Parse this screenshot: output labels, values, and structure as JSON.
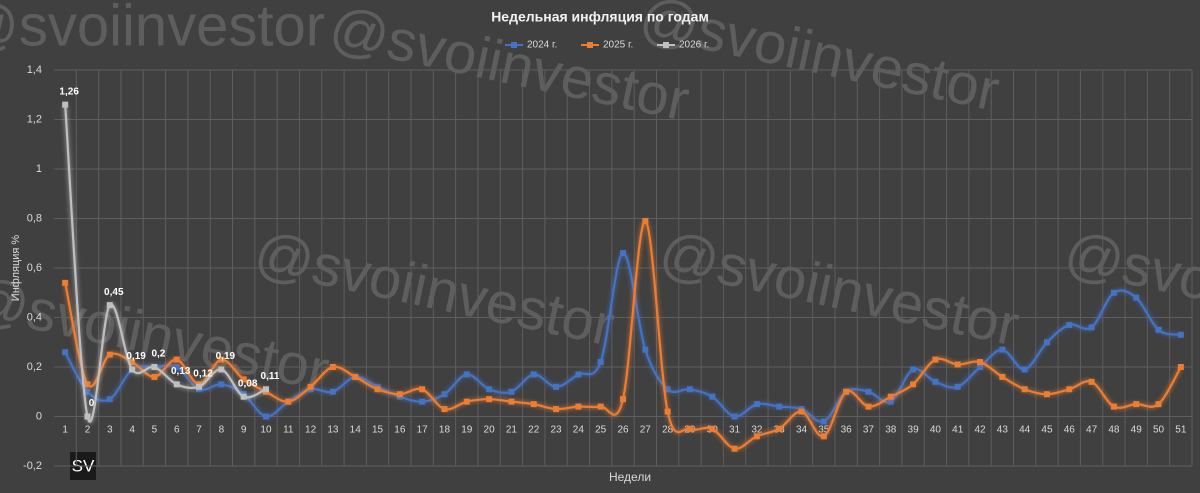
{
  "chart_data": {
    "type": "line",
    "title": "Недельная инфляция по годам",
    "y_label": "Инфляция %",
    "x_label": "Недели",
    "watermark": "@svoiinvestor",
    "logo": "SV",
    "categories": [
      "1",
      "2",
      "3",
      "4",
      "5",
      "6",
      "7",
      "8",
      "9",
      "10",
      "11",
      "12",
      "13",
      "14",
      "15",
      "16",
      "17",
      "18",
      "19",
      "20",
      "21",
      "22",
      "23",
      "24",
      "25",
      "26",
      "27",
      "28",
      "29",
      "30",
      "31",
      "32",
      "33",
      "34",
      "35",
      "36",
      "37",
      "38",
      "39",
      "40",
      "41",
      "42",
      "43",
      "44",
      "45",
      "46",
      "47",
      "48",
      "49",
      "50",
      "51"
    ],
    "ylim": [
      -0.2,
      1.4
    ],
    "yticks": [
      {
        "value": -0.2,
        "label": "-0,2"
      },
      0,
      {
        "value": 0.2,
        "label": "0,2"
      },
      {
        "value": 0.4,
        "label": "0,4"
      },
      {
        "value": 0.6,
        "label": "0,6"
      },
      {
        "value": 0.8,
        "label": "0,8"
      },
      1,
      {
        "value": 1.2,
        "label": "1,2"
      },
      {
        "value": 1.4,
        "label": "1,4"
      }
    ],
    "grid": true,
    "legend": "top",
    "series": [
      {
        "name": "2024 г.",
        "color": "#4472c4",
        "values": [
          0.26,
          0.1,
          0.07,
          0.19,
          0.2,
          0.2,
          0.11,
          0.13,
          0.09,
          0.0,
          0.06,
          0.11,
          0.1,
          0.16,
          0.12,
          0.08,
          0.06,
          0.09,
          0.17,
          0.11,
          0.1,
          0.17,
          0.12,
          0.17,
          0.22,
          0.66,
          0.27,
          0.11,
          0.11,
          0.08,
          0.0,
          0.05,
          0.04,
          0.03,
          -0.02,
          0.1,
          0.1,
          0.06,
          0.19,
          0.14,
          0.12,
          0.2,
          0.27,
          0.19,
          0.3,
          0.37,
          0.36,
          0.5,
          0.48,
          0.35,
          0.33
        ]
      },
      {
        "name": "2025 г.",
        "color": "#ed7d31",
        "values": [
          0.54,
          0.13,
          0.25,
          0.22,
          0.16,
          0.23,
          0.13,
          0.23,
          0.15,
          0.1,
          0.06,
          0.12,
          0.2,
          0.16,
          0.11,
          0.09,
          0.11,
          0.03,
          0.06,
          0.07,
          0.06,
          0.05,
          0.03,
          0.04,
          0.04,
          0.07,
          0.79,
          0.02,
          -0.05,
          -0.05,
          -0.13,
          -0.08,
          -0.05,
          0.02,
          -0.08,
          0.1,
          0.04,
          0.08,
          0.13,
          0.23,
          0.21,
          0.22,
          0.16,
          0.11,
          0.09,
          0.11,
          0.14,
          0.04,
          0.05,
          0.05,
          0.2
        ]
      },
      {
        "name": "2026 г.",
        "color": "#bfbfbf",
        "values": [
          1.26,
          0,
          0.45,
          0.19,
          0.2,
          0.13,
          0.12,
          0.19,
          0.08,
          0.11,
          null,
          null,
          null,
          null,
          null,
          null,
          null,
          null,
          null,
          null,
          null,
          null,
          null,
          null,
          null,
          null,
          null,
          null,
          null,
          null,
          null,
          null,
          null,
          null,
          null,
          null,
          null,
          null,
          null,
          null,
          null,
          null,
          null,
          null,
          null,
          null,
          null,
          null,
          null,
          null,
          null
        ],
        "value_labels": [
          "1,26",
          "0",
          "0,45",
          "0,19",
          "0,2",
          "0,13",
          "0,12",
          "0,19",
          "0,08",
          "0,11",
          null,
          null,
          null,
          null,
          null,
          null,
          null,
          null,
          null,
          null,
          null,
          null,
          null,
          null,
          null,
          null,
          null,
          null,
          null,
          null,
          null,
          null,
          null,
          null,
          null,
          null,
          null,
          null,
          null,
          null,
          null,
          null,
          null,
          null,
          null,
          null,
          null,
          null,
          null,
          null,
          null
        ]
      }
    ]
  }
}
